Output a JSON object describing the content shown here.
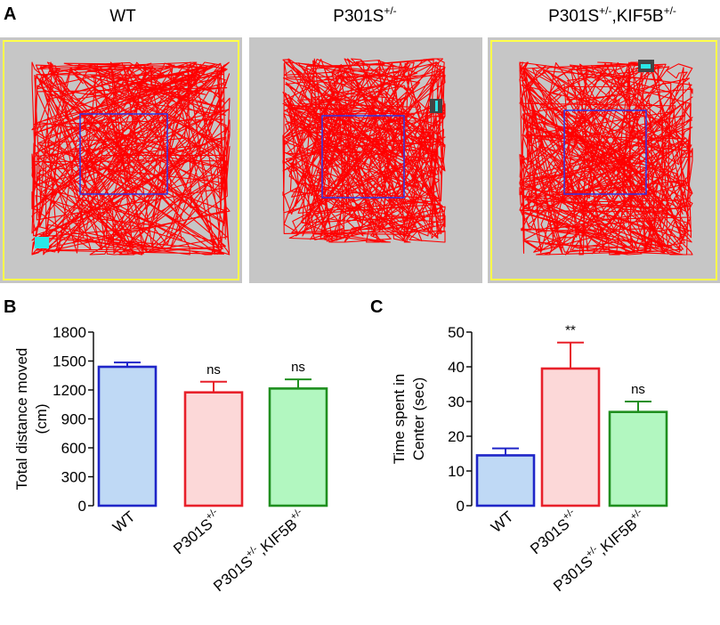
{
  "panel_a": {
    "label": "A",
    "arenas": [
      {
        "title": "WT",
        "title_base": "WT",
        "title_sup": "",
        "title_tail": "",
        "title_tail_sup": ""
      },
      {
        "title": "P301S+/-",
        "title_base": "P301S",
        "title_sup": "+/-",
        "title_tail": "",
        "title_tail_sup": ""
      },
      {
        "title": "P301S+/-,KIF5B+/-",
        "title_base": "P301S",
        "title_sup": "+/-",
        "title_tail": ",KIF5B",
        "title_tail_sup": "+/-"
      }
    ]
  },
  "colors": {
    "wt_fill": "#bfd9f5",
    "wt_edge": "#1f25c8",
    "p301s_fill": "#fcd8d8",
    "p301s_edge": "#e8202a",
    "kif_fill": "#b2f7c0",
    "kif_edge": "#1f8f1f",
    "arena_bg": "#c6c6c6",
    "arena_border": "#ffff4a",
    "track": "#ff0000",
    "center_zone": "#2b35e8",
    "start_marker": "#2be6e6"
  },
  "chart_data": [
    {
      "type": "bar",
      "panel_label": "B",
      "categories": [
        "WT",
        "P301S+/-",
        "P301S+/-,KIF5B+/-"
      ],
      "category_parts": [
        {
          "base": "WT",
          "sup": "",
          "tail": "",
          "tail_sup": ""
        },
        {
          "base": "P301S",
          "sup": "+/-",
          "tail": "",
          "tail_sup": ""
        },
        {
          "base": "P301S",
          "sup": "+/-",
          "tail": ",KIF5B",
          "tail_sup": "+/-"
        }
      ],
      "values": [
        1440,
        1175,
        1215
      ],
      "errors": [
        45,
        110,
        95
      ],
      "significance": [
        "",
        "ns",
        "ns"
      ],
      "ylabel_line1": "Total distance moved",
      "ylabel_line2": "(cm)",
      "ylim": [
        0,
        1800
      ],
      "yticks": [
        0,
        300,
        600,
        900,
        1200,
        1500,
        1800
      ]
    },
    {
      "type": "bar",
      "panel_label": "C",
      "categories": [
        "WT",
        "P301S+/-",
        "P301S+/-,KIF5B+/-"
      ],
      "category_parts": [
        {
          "base": "WT",
          "sup": "",
          "tail": "",
          "tail_sup": ""
        },
        {
          "base": "P301S",
          "sup": "+/-",
          "tail": "",
          "tail_sup": ""
        },
        {
          "base": "P301S",
          "sup": "+/-",
          "tail": ",KIF5B",
          "tail_sup": "+/-"
        }
      ],
      "values": [
        14.5,
        39.5,
        27
      ],
      "errors": [
        2,
        7.5,
        3
      ],
      "significance": [
        "",
        "**",
        "ns"
      ],
      "ylabel_line1": "Time spent in",
      "ylabel_line2": "Center (sec)",
      "ylim": [
        0,
        50
      ],
      "yticks": [
        0,
        10,
        20,
        30,
        40,
        50
      ]
    }
  ]
}
